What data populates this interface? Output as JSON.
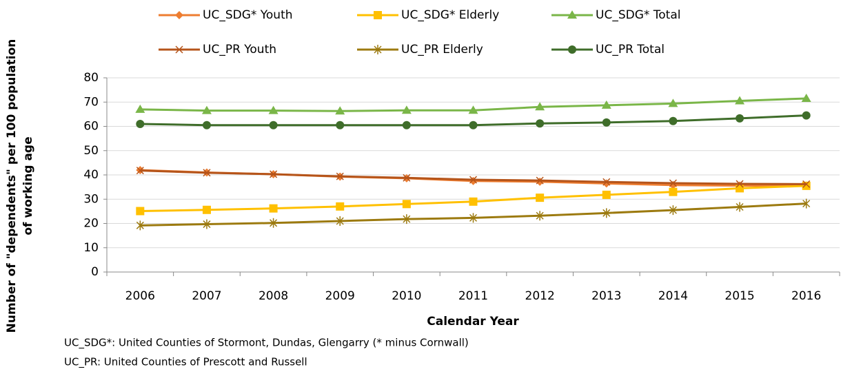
{
  "chart_data": {
    "type": "line",
    "y_label": "Number of \"dependents\" per 100 population of working age",
    "x_label": "Calendar Year",
    "categories": [
      "2006",
      "2007",
      "2008",
      "2009",
      "2010",
      "2011",
      "2012",
      "2013",
      "2014",
      "2015",
      "2016"
    ],
    "ylim": [
      0,
      80
    ],
    "yticks": [
      0,
      10,
      20,
      30,
      40,
      50,
      60,
      70,
      80
    ],
    "grid": true,
    "series": [
      {
        "name": "UC_SDG* Youth",
        "color": "#ed7d31",
        "marker": "diamond",
        "values": [
          42,
          41,
          40.3,
          39.3,
          38.6,
          37.5,
          37.2,
          36.5,
          35.8,
          35.6,
          35.6
        ]
      },
      {
        "name": "UC_SDG* Elderly",
        "color": "#ffc000",
        "marker": "square",
        "values": [
          25.1,
          25.6,
          26.2,
          27,
          28,
          29,
          30.6,
          31.8,
          33,
          34.5,
          35.5
        ]
      },
      {
        "name": "UC_SDG* Total",
        "color": "#7ab648",
        "marker": "triangle",
        "values": [
          67,
          66.5,
          66.5,
          66.3,
          66.6,
          66.6,
          68,
          68.7,
          69.4,
          70.5,
          71.5
        ]
      },
      {
        "name": "UC_PR Youth",
        "color": "#b5541a",
        "marker": "x",
        "values": [
          41.8,
          40.9,
          40.3,
          39.4,
          38.8,
          38,
          37.7,
          37.1,
          36.6,
          36.3,
          36.2
        ]
      },
      {
        "name": "UC_PR Elderly",
        "color": "#9c7a0f",
        "marker": "asterisk",
        "values": [
          19.2,
          19.7,
          20.2,
          21,
          21.8,
          22.3,
          23.2,
          24.3,
          25.5,
          26.8,
          28.2
        ]
      },
      {
        "name": "UC_PR Total",
        "color": "#3f6d2a",
        "marker": "circle",
        "values": [
          61,
          60.5,
          60.5,
          60.5,
          60.5,
          60.5,
          61.2,
          61.6,
          62.2,
          63.3,
          64.5
        ]
      }
    ],
    "notes": [
      "UC_SDG*:  United Counties of Stormont, Dundas, Glengarry (* minus Cornwall)",
      "UC_PR:  United Counties of Prescott and Russell"
    ]
  }
}
